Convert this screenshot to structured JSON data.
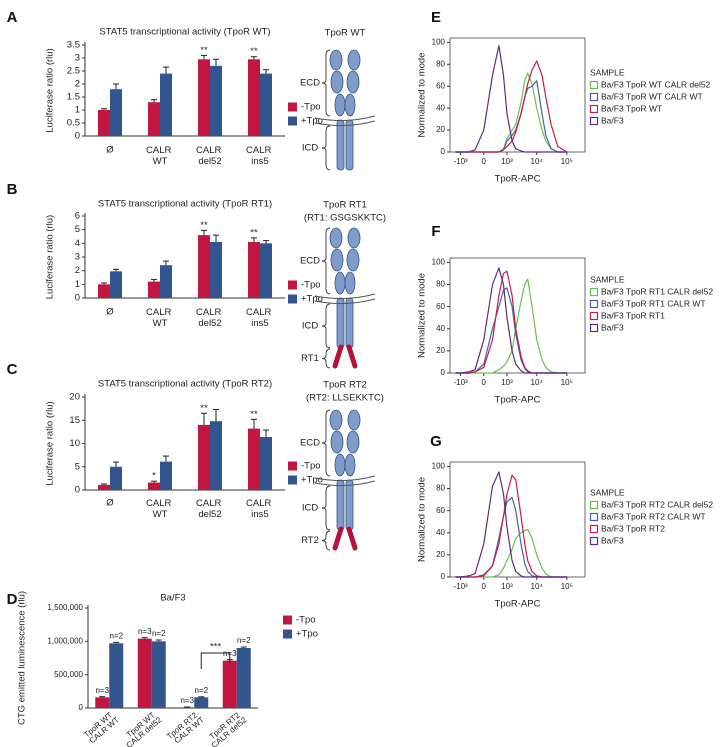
{
  "chart_data": [
    {
      "type": "bar",
      "label": "A",
      "title": "STAT5 transcriptional activity (TpoR WT)",
      "y_label": "Luciferase ratio (rlu)",
      "categories": [
        "Ø",
        "CALR WT",
        "CALR del52",
        "CALR ins5"
      ],
      "series": [
        {
          "name": "-Tpo",
          "color": "#c0163f",
          "values": [
            1,
            1.3,
            2.95,
            2.95
          ],
          "errors": [
            0.05,
            0.1,
            0.15,
            0.1
          ],
          "significance": [
            null,
            null,
            "**",
            "**"
          ]
        },
        {
          "name": "+Tpo",
          "color": "#33558f",
          "values": [
            1.8,
            2.4,
            2.7,
            2.4
          ],
          "errors": [
            0.2,
            0.25,
            0.25,
            0.15
          ]
        }
      ],
      "ylim": [
        0,
        3.5
      ],
      "yticks": [
        0,
        0.5,
        1,
        1.5,
        2,
        2.5,
        3,
        3.5
      ]
    },
    {
      "type": "bar",
      "label": "B",
      "title": "STAT5 transcriptional activity (TpoR RT1)",
      "y_label": "Luciferase ratio (rlu)",
      "categories": [
        "Ø",
        "CALR WT",
        "CALR del52",
        "CALR ins5"
      ],
      "series": [
        {
          "name": "-Tpo",
          "color": "#c0163f",
          "values": [
            1,
            1.2,
            4.6,
            4.1
          ],
          "errors": [
            0.1,
            0.15,
            0.35,
            0.3
          ],
          "significance": [
            null,
            null,
            "**",
            "**"
          ]
        },
        {
          "name": "+Tpo",
          "color": "#33558f",
          "values": [
            1.95,
            2.4,
            4.1,
            4
          ],
          "errors": [
            0.15,
            0.3,
            0.5,
            0.2
          ]
        }
      ],
      "ylim": [
        0,
        6
      ],
      "yticks": [
        0,
        1,
        2,
        3,
        4,
        5,
        6
      ]
    },
    {
      "type": "bar",
      "label": "C",
      "title": "STAT5 transcriptional activity (TpoR RT2)",
      "y_label": "Luciferase ratio (rlu)",
      "categories": [
        "Ø",
        "CALR WT",
        "CALR del52",
        "CALR ins5"
      ],
      "series": [
        {
          "name": "-Tpo",
          "color": "#c0163f",
          "values": [
            1.1,
            1.6,
            14,
            13.2
          ],
          "errors": [
            0.2,
            0.3,
            2.5,
            2
          ],
          "significance": [
            null,
            "*",
            "**",
            "**"
          ]
        },
        {
          "name": "+Tpo",
          "color": "#33558f",
          "values": [
            5,
            6.1,
            14.8,
            11.4
          ],
          "errors": [
            1,
            1.2,
            2.5,
            1.5
          ]
        }
      ],
      "ylim": [
        0,
        20
      ],
      "yticks": [
        0,
        5,
        10,
        15,
        20
      ]
    },
    {
      "type": "bar",
      "label": "D",
      "title": "Ba/F3",
      "y_label": "CTG emitted luminescence (rlu)",
      "categories": [
        "TpoR WT CALR WT",
        "TpoR WT CALR del52",
        "TpoR RT2 CALR WT",
        "TpoR RT2 CALR del52"
      ],
      "series": [
        {
          "name": "-Tpo",
          "color": "#c0163f",
          "values": [
            160000,
            1040000,
            10000,
            710000
          ],
          "errors": [
            10000,
            15000,
            5000,
            15000
          ],
          "annotations": [
            "n=3",
            "n=3",
            "n=3",
            "n=3"
          ]
        },
        {
          "name": "+Tpo",
          "color": "#33558f",
          "values": [
            970000,
            1000000,
            160000,
            900000
          ],
          "errors": [
            15000,
            20000,
            8000,
            15000
          ],
          "annotations": [
            "n=2",
            "n=2",
            "n=2",
            "n=2"
          ]
        }
      ],
      "annotation": "***",
      "ylim": [
        0,
        1500000
      ],
      "yticks": [
        0,
        {
          "value": 500000,
          "label": "500,000"
        },
        {
          "value": 1000000,
          "label": "1,000,000"
        },
        {
          "value": 1500000,
          "label": "1,500,000"
        }
      ]
    },
    {
      "type": "line",
      "label": "E",
      "x_label": "TpoR-APC",
      "y_label": "Normalized to mode",
      "legend_title": "SAMPLE",
      "xscale": "arcsinh",
      "x": [
        -1500,
        -1000,
        -500,
        -250,
        0,
        250,
        500,
        750,
        1000,
        1500,
        2000,
        3000,
        4000,
        5000,
        7000,
        10000,
        15000,
        20000,
        30000,
        50000,
        100000
      ],
      "series": [
        {
          "name": "Ba/F3 TpoR WT CALR del52",
          "color": "#6cbf4f",
          "values": [
            0,
            0,
            0,
            0,
            0,
            0,
            0,
            3,
            12,
            20,
            25,
            45,
            65,
            72,
            62,
            40,
            20,
            10,
            3,
            0,
            0
          ]
        },
        {
          "name": "Ba/F3 TpoR WT CALR WT",
          "color": "#4c5fa3",
          "values": [
            0,
            0,
            0,
            0,
            0,
            0,
            0,
            2,
            10,
            15,
            20,
            35,
            50,
            58,
            60,
            65,
            35,
            15,
            3,
            0,
            0
          ]
        },
        {
          "name": "Ba/F3 TpoR WT",
          "color": "#c41e4a",
          "values": [
            0,
            0,
            0,
            0,
            0,
            0,
            0,
            2,
            5,
            10,
            18,
            35,
            50,
            62,
            75,
            83,
            70,
            50,
            25,
            5,
            0
          ]
        },
        {
          "name": "Ba/F3",
          "color": "#5b2c83",
          "values": [
            0,
            0,
            0,
            2,
            20,
            70,
            97,
            70,
            35,
            10,
            3,
            1,
            0,
            0,
            0,
            0,
            0,
            0,
            0,
            0,
            0
          ]
        }
      ],
      "xlim": [
        -2300,
        400000
      ],
      "xticks": [
        {
          "value": -1000,
          "label": "-10³"
        },
        0,
        {
          "value": 1000,
          "label": "10³"
        },
        {
          "value": 10000,
          "label": "10⁴"
        },
        {
          "value": 100000,
          "label": "10⁵"
        }
      ],
      "ylim": [
        0,
        104
      ],
      "yticks": [
        0,
        20,
        40,
        60,
        80,
        100
      ]
    },
    {
      "type": "line",
      "label": "F",
      "x_label": "TpoR-APC",
      "y_label": "Normalized to mode",
      "legend_title": "SAMPLE",
      "xscale": "arcsinh",
      "x": [
        -1500,
        -1000,
        -500,
        -250,
        0,
        250,
        500,
        750,
        1000,
        1500,
        2000,
        3000,
        4000,
        5000,
        7000,
        10000,
        15000,
        20000,
        30000,
        50000,
        100000
      ],
      "series": [
        {
          "name": "Ba/F3 TpoR RT1 CALR del52",
          "color": "#6cbf4f",
          "values": [
            0,
            0,
            0,
            0,
            0,
            0,
            3,
            6,
            10,
            20,
            40,
            65,
            80,
            85,
            60,
            30,
            12,
            5,
            1,
            0,
            0
          ]
        },
        {
          "name": "Ba/F3 TpoR RT1 CALR WT",
          "color": "#4c5fa3",
          "values": [
            0,
            0,
            0,
            1,
            8,
            40,
            60,
            75,
            77,
            60,
            35,
            12,
            4,
            1,
            0,
            0,
            0,
            0,
            0,
            0,
            0
          ]
        },
        {
          "name": "Ba/F3 TpoR RT1",
          "color": "#c41e4a",
          "values": [
            0,
            0,
            0,
            1,
            5,
            30,
            70,
            90,
            92,
            70,
            40,
            15,
            5,
            2,
            0,
            0,
            0,
            0,
            0,
            0,
            0
          ]
        },
        {
          "name": "Ba/F3",
          "color": "#5b2c83",
          "values": [
            0,
            0,
            1,
            3,
            30,
            80,
            95,
            80,
            50,
            20,
            8,
            2,
            0,
            0,
            0,
            0,
            0,
            0,
            0,
            0,
            0
          ]
        }
      ],
      "xlim": [
        -2300,
        400000
      ],
      "xticks": [
        {
          "value": -1000,
          "label": "-10³"
        },
        0,
        {
          "value": 1000,
          "label": "10³"
        },
        {
          "value": 10000,
          "label": "10⁴"
        },
        {
          "value": 100000,
          "label": "10⁵"
        }
      ],
      "ylim": [
        0,
        104
      ],
      "yticks": [
        0,
        20,
        40,
        60,
        80,
        100
      ]
    },
    {
      "type": "line",
      "label": "G",
      "x_label": "TpoR-APC",
      "y_label": "Normalized to mode",
      "legend_title": "SAMPLE",
      "xscale": "arcsinh",
      "x": [
        -1500,
        -1000,
        -500,
        -250,
        0,
        250,
        500,
        750,
        1000,
        1500,
        2000,
        3000,
        4000,
        5000,
        7000,
        10000,
        15000,
        20000,
        30000,
        50000,
        100000
      ],
      "series": [
        {
          "name": "Ba/F3 TpoR RT2 CALR del52",
          "color": "#6cbf4f",
          "values": [
            0,
            0,
            0,
            0,
            0,
            0,
            2,
            8,
            15,
            25,
            35,
            40,
            42,
            43,
            35,
            20,
            8,
            3,
            0,
            0,
            0
          ]
        },
        {
          "name": "Ba/F3 TpoR RT2 CALR WT",
          "color": "#4c5fa3",
          "values": [
            0,
            0,
            0,
            0,
            2,
            10,
            35,
            55,
            68,
            72,
            60,
            30,
            12,
            5,
            1,
            0,
            0,
            0,
            0,
            0,
            0
          ]
        },
        {
          "name": "Ba/F3 TpoR RT2",
          "color": "#c41e4a",
          "values": [
            0,
            0,
            0,
            0,
            1,
            10,
            30,
            55,
            75,
            92,
            88,
            55,
            30,
            15,
            5,
            1,
            0,
            0,
            0,
            0,
            0
          ]
        },
        {
          "name": "Ba/F3",
          "color": "#5b2c83",
          "values": [
            0,
            0,
            1,
            3,
            30,
            82,
            95,
            75,
            45,
            15,
            5,
            1,
            0,
            0,
            0,
            0,
            0,
            0,
            0,
            0,
            0
          ]
        }
      ],
      "xlim": [
        -2300,
        400000
      ],
      "xticks": [
        {
          "value": -1000,
          "label": "-10³"
        },
        0,
        {
          "value": 1000,
          "label": "10³"
        },
        {
          "value": 10000,
          "label": "10⁴"
        },
        {
          "value": 100000,
          "label": "10⁵"
        }
      ],
      "ylim": [
        0,
        104
      ],
      "yticks": [
        0,
        20,
        40,
        60,
        80,
        100
      ]
    }
  ],
  "diagrams": [
    {
      "title": "TpoR WT",
      "labels": [
        "ECD",
        "ICD"
      ]
    },
    {
      "title": "TpoR RT1",
      "subtitle": "(RT1: GSGSKKTC)",
      "labels": [
        "ECD",
        "ICD",
        "RT1"
      ]
    },
    {
      "title": "TpoR RT2",
      "subtitle": "(RT2: LLSEKKTC)",
      "labels": [
        "ECD",
        "ICD",
        "RT2"
      ]
    }
  ]
}
